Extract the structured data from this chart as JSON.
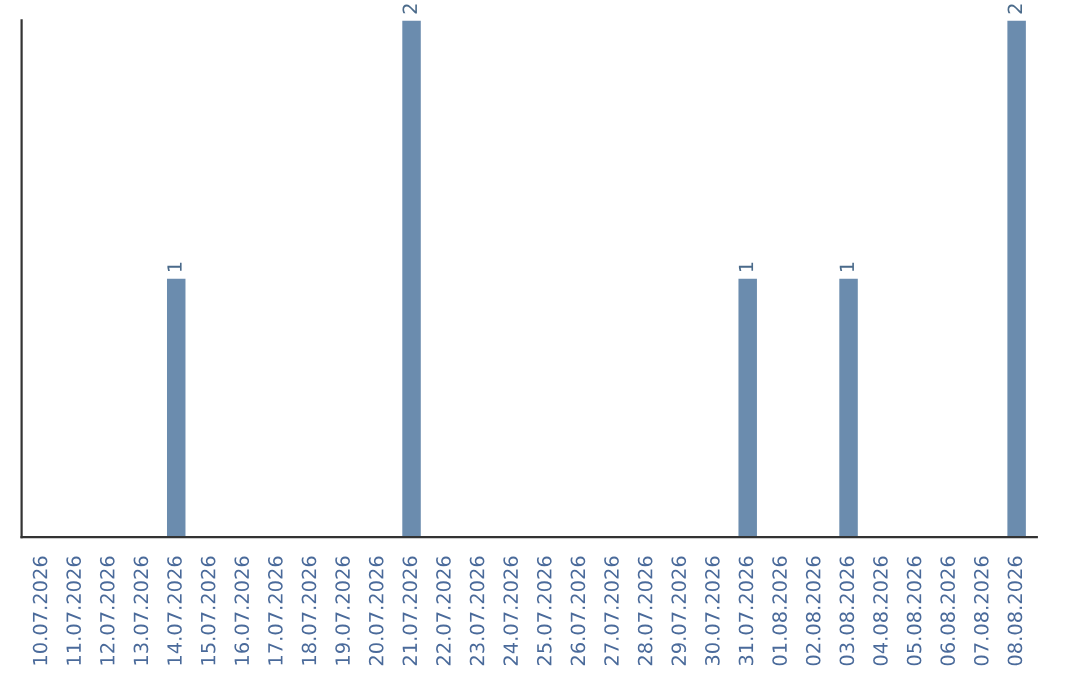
{
  "chart_data": {
    "type": "bar",
    "categories": [
      "10.07.2026",
      "11.07.2026",
      "12.07.2026",
      "13.07.2026",
      "14.07.2026",
      "15.07.2026",
      "16.07.2026",
      "17.07.2026",
      "18.07.2026",
      "19.07.2026",
      "20.07.2026",
      "21.07.2026",
      "22.07.2026",
      "23.07.2026",
      "24.07.2026",
      "25.07.2026",
      "26.07.2026",
      "27.07.2026",
      "28.07.2026",
      "29.07.2026",
      "30.07.2026",
      "31.07.2026",
      "01.08.2026",
      "02.08.2026",
      "03.08.2026",
      "04.08.2026",
      "05.08.2026",
      "06.08.2026",
      "07.08.2026",
      "08.08.2026"
    ],
    "values": [
      0,
      0,
      0,
      0,
      1,
      0,
      0,
      0,
      0,
      0,
      0,
      2,
      0,
      0,
      0,
      0,
      0,
      0,
      0,
      0,
      0,
      1,
      0,
      0,
      1,
      0,
      0,
      0,
      0,
      2
    ],
    "value_labels": [
      null,
      null,
      null,
      null,
      "1",
      null,
      null,
      null,
      null,
      null,
      null,
      "2",
      null,
      null,
      null,
      null,
      null,
      null,
      null,
      null,
      null,
      "1",
      null,
      null,
      "1",
      null,
      null,
      null,
      null,
      "2"
    ],
    "color": "#6b8cae",
    "ylim": [
      0,
      2
    ],
    "tick_labels": "x",
    "grid": false,
    "legend": false
  }
}
